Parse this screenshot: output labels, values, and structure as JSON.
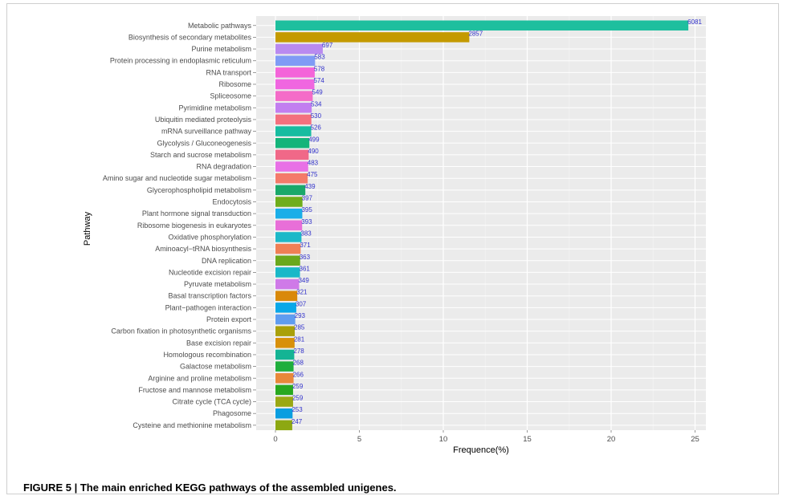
{
  "caption": {
    "prefix": "FIGURE 5 | ",
    "text": "The main enriched KEGG pathways of the assembled unigenes."
  },
  "chart_data": {
    "type": "bar",
    "orientation": "horizontal",
    "xlabel": "Frequence(%)",
    "ylabel": "Pathway",
    "xlim": [
      0,
      26
    ],
    "xticks": [
      0,
      5,
      10,
      15,
      20,
      25
    ],
    "grid": true,
    "panel_background": "#ebebeb",
    "value_label_color": "#3333cc",
    "categories": [
      "Metabolic pathways",
      "Biosynthesis of secondary metabolites",
      "Purine metabolism",
      "Protein processing in endoplasmic reticulum",
      "RNA transport",
      "Ribosome",
      "Spliceosome",
      "Pyrimidine metabolism",
      "Ubiquitin mediated proteolysis",
      "mRNA surveillance pathway",
      "Glycolysis / Gluconeogenesis",
      "Starch and sucrose metabolism",
      "RNA degradation",
      "Amino sugar and nucleotide sugar metabolism",
      "Glycerophospholipid metabolism",
      "Endocytosis",
      "Plant hormone signal transduction",
      "Ribosome biogenesis in eukaryotes",
      "Oxidative phosphorylation",
      "Aminoacyl−tRNA biosynthesis",
      "DNA replication",
      "Nucleotide excision repair",
      "Pyruvate metabolism",
      "Basal transcription factors",
      "Plant−pathogen interaction",
      "Protein export",
      "Carbon fixation in photosynthetic organisms",
      "Base excision repair",
      "Homologous recombination",
      "Galactose metabolism",
      "Arginine and proline metabolism",
      "Fructose and mannose metabolism",
      "Citrate cycle (TCA cycle)",
      "Phagosome",
      "Cysteine and methionine metabolism"
    ],
    "counts": [
      6081,
      2857,
      697,
      583,
      578,
      574,
      549,
      534,
      530,
      526,
      499,
      490,
      483,
      475,
      439,
      397,
      395,
      393,
      383,
      371,
      363,
      361,
      349,
      321,
      307,
      293,
      285,
      281,
      278,
      268,
      266,
      259,
      259,
      253,
      247
    ],
    "values": [
      24.6,
      11.55,
      2.82,
      2.36,
      2.34,
      2.32,
      2.22,
      2.16,
      2.14,
      2.13,
      2.02,
      1.98,
      1.95,
      1.92,
      1.78,
      1.61,
      1.6,
      1.59,
      1.55,
      1.5,
      1.47,
      1.46,
      1.41,
      1.3,
      1.24,
      1.18,
      1.15,
      1.14,
      1.12,
      1.08,
      1.08,
      1.05,
      1.05,
      1.02,
      1.0
    ],
    "colors": [
      "#1ebf9e",
      "#c49a00",
      "#b98af0",
      "#7f9bf5",
      "#f464d9",
      "#f066e0",
      "#f46cc8",
      "#c27ef0",
      "#f3707e",
      "#17bca0",
      "#14b47a",
      "#f06888",
      "#e870e6",
      "#f47a6a",
      "#1aa86a",
      "#6fad1a",
      "#1aaee8",
      "#e86fd8",
      "#1cb8c8",
      "#ef7f55",
      "#6aa81c",
      "#1ab8c8",
      "#cf7ae8",
      "#d9890a",
      "#0aa8e8",
      "#5f9cf0",
      "#a9a00a",
      "#d8900a",
      "#14b494",
      "#1fae3c",
      "#e8883a",
      "#28a820",
      "#9aa814",
      "#0a9ee0",
      "#8da812"
    ]
  }
}
